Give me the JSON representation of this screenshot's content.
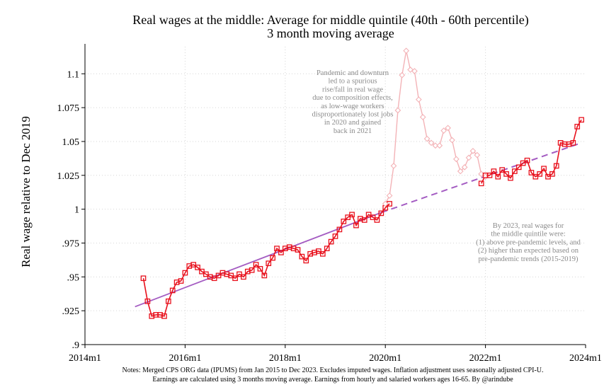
{
  "chart_data": {
    "type": "line",
    "title": "Real wages at the middle: Average for middle quintile (40th - 60th percentile)",
    "subtitle": "3 month moving average",
    "ylabel": "Real wage  relative to Dec 2019",
    "xlabel": "",
    "ylim": [
      0.9,
      1.12
    ],
    "y_ticks": [
      0.9,
      0.925,
      0.95,
      0.975,
      1,
      1.025,
      1.05,
      1.075,
      1.1
    ],
    "y_tick_labels": [
      ".9",
      ".925",
      ".95",
      ".975",
      "1",
      "1.025",
      "1.05",
      "1.075",
      "1.1"
    ],
    "x_ticks": [
      "2014m1",
      "2016m1",
      "2018m1",
      "2020m1",
      "2022m1",
      "2024m1"
    ],
    "grid": true,
    "legend": "none",
    "colors": {
      "main": "#e8101c",
      "pandemic": "#f3b3b7",
      "trend": "#a45cc2"
    },
    "series": [
      {
        "style": "line-square-markers",
        "start": "2015m3",
        "values": [
          0.949,
          0.932,
          0.921,
          0.922,
          0.922,
          0.921,
          0.932,
          0.94,
          0.946,
          0.947,
          0.953,
          0.958,
          0.959,
          0.957,
          0.954,
          0.952,
          0.95,
          0.949,
          0.951,
          0.953,
          0.952,
          0.951,
          0.949,
          0.952,
          0.95,
          0.954,
          0.955,
          0.959,
          0.956,
          0.951,
          0.96,
          0.964,
          0.971,
          0.968,
          0.971,
          0.972,
          0.971,
          0.97,
          0.965,
          0.962,
          0.967,
          0.968,
          0.969,
          0.967,
          0.971,
          0.976,
          0.98,
          0.985,
          0.991,
          0.994,
          0.996,
          0.988,
          0.993,
          0.992,
          0.996,
          0.994,
          0.992,
          0.997,
          1.001,
          1.004
        ]
      },
      {
        "style": "line-diamond-markers-faded",
        "start": "2020m1",
        "values": [
          1.004,
          1.01,
          1.032,
          1.073,
          1.099,
          1.117,
          1.103,
          1.102,
          1.081,
          1.068,
          1.052,
          1.049,
          1.047,
          1.047,
          1.058,
          1.06,
          1.051,
          1.037,
          1.028,
          1.031,
          1.038,
          1.043,
          1.04,
          1.026,
          1.024
        ]
      },
      {
        "style": "line-square-markers",
        "start": "2021m12",
        "values": [
          1.019,
          1.025,
          1.025,
          1.028,
          1.024,
          1.029,
          1.026,
          1.023,
          1.028,
          1.031,
          1.034,
          1.036,
          1.027,
          1.024,
          1.026,
          1.03,
          1.024,
          1.026,
          1.032,
          1.049,
          1.048,
          1.048,
          1.049,
          1.061,
          1.066
        ]
      },
      {
        "style": "dashed-trend",
        "points": [
          [
            "2019m12",
            0.9975
          ],
          [
            "2023m12",
            1.049
          ]
        ]
      },
      {
        "style": "solid-trend",
        "points": [
          [
            "2015m1",
            0.928
          ],
          [
            "2019m12",
            0.9975
          ]
        ]
      }
    ],
    "annotations": {
      "pandemic": [
        "Pandemic and downturn",
        "led to a spurious",
        "rise/fall in real wage",
        "due to composition effects,",
        "as low-wage workers",
        "disproportionately lost jobs",
        "in 2020 and gained",
        "back in 2021"
      ],
      "y2023": [
        "By 2023, real wages for",
        "the middle quintile were:",
        "(1) above pre-pandemic levels, and",
        "(2) higher than expected based on",
        "pre-pandemic trends (2015-2019)"
      ]
    },
    "notes": [
      "Notes: Merged CPS ORG data (IPUMS) from Jan 2015 to Dec 2023. Excludes imputed wages. Inflation adjustment uses seasonally adjusted CPI-U.",
      "Earnings are calculated using 3 months moving average. Earnings from hourly and salaried workers ages 16-65. By @arindube"
    ]
  }
}
